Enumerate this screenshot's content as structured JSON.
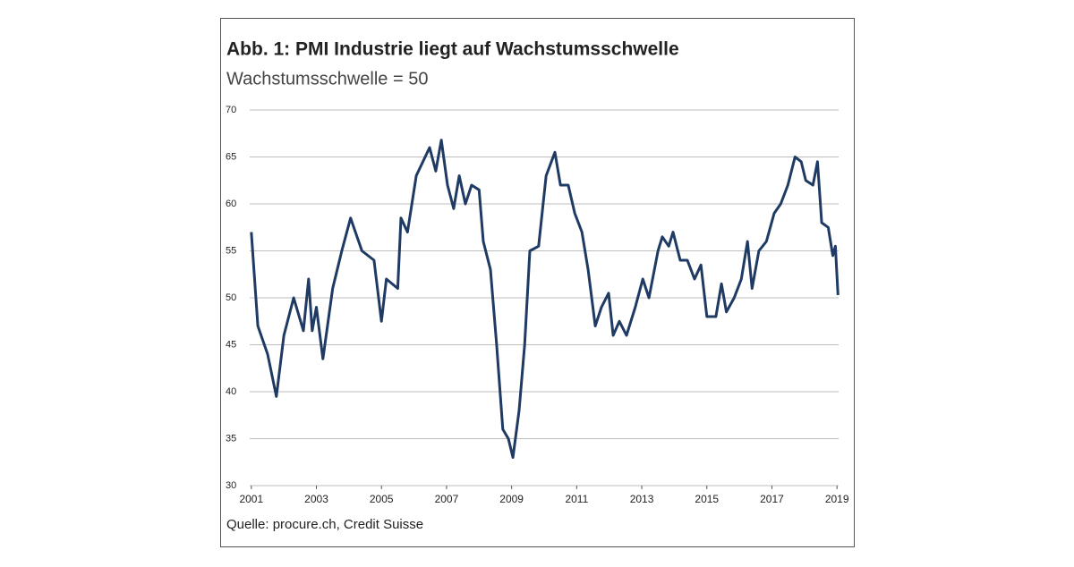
{
  "chart_data": {
    "type": "line",
    "title": "Abb. 1: PMI Industrie liegt auf Wachstumsschwelle",
    "subtitle": "Wachstumsschwelle = 50",
    "source": "Quelle: procure.ch, Credit Suisse",
    "x": [
      2001.0,
      2001.2,
      2001.5,
      2001.77,
      2002.0,
      2002.3,
      2002.6,
      2002.76,
      2002.87,
      2003.0,
      2003.2,
      2003.5,
      2003.78,
      2004.05,
      2004.4,
      2004.77,
      2005.0,
      2005.15,
      2005.5,
      2005.6,
      2005.8,
      2006.07,
      2006.48,
      2006.67,
      2006.84,
      2007.03,
      2007.22,
      2007.39,
      2007.58,
      2007.77,
      2008.0,
      2008.13,
      2008.35,
      2008.54,
      2008.73,
      2008.9,
      2009.04,
      2009.23,
      2009.4,
      2009.56,
      2009.83,
      2010.06,
      2010.33,
      2010.5,
      2010.74,
      2010.94,
      2011.16,
      2011.35,
      2011.57,
      2011.76,
      2011.98,
      2012.12,
      2012.31,
      2012.53,
      2012.8,
      2013.03,
      2013.22,
      2013.5,
      2013.63,
      2013.83,
      2013.96,
      2014.18,
      2014.4,
      2014.62,
      2014.82,
      2015.0,
      2015.28,
      2015.45,
      2015.6,
      2015.84,
      2016.06,
      2016.25,
      2016.39,
      2016.6,
      2016.83,
      2017.07,
      2017.27,
      2017.49,
      2017.71,
      2017.9,
      2018.04,
      2018.26,
      2018.4,
      2018.53,
      2018.73,
      2018.87,
      2018.95,
      2019.03
    ],
    "series": [
      {
        "name": "PMI Industrie",
        "color": "#1f3b64",
        "values": [
          57,
          47,
          44,
          39.5,
          46,
          50,
          46.5,
          52,
          46.5,
          49,
          43.5,
          51,
          55,
          58.5,
          55,
          54,
          47.5,
          52,
          51,
          58.5,
          57,
          63,
          66,
          63.5,
          66.8,
          62,
          59.5,
          63,
          60,
          62,
          61.5,
          56,
          53,
          45,
          36,
          35,
          33,
          38,
          45,
          55,
          55.5,
          63,
          65.5,
          62,
          62,
          59,
          57,
          53,
          47,
          49,
          50.5,
          46,
          47.5,
          46,
          49,
          52,
          50,
          55,
          56.5,
          55.5,
          57,
          54,
          54,
          52,
          53.5,
          48,
          48,
          51.5,
          48.5,
          50,
          52,
          56,
          51,
          55,
          56,
          59,
          60,
          62,
          65,
          64.5,
          62.5,
          62,
          64.5,
          58,
          57.5,
          54.5,
          55.5,
          50.3
        ]
      }
    ],
    "xlim": [
      2000.95,
      2019.05
    ],
    "xticks": [
      2001,
      2003,
      2005,
      2007,
      2009,
      2011,
      2013,
      2015,
      2017,
      2019
    ],
    "ylim": [
      30,
      70
    ],
    "yticks": [
      30,
      35,
      40,
      45,
      50,
      55,
      60,
      65,
      70
    ],
    "grid": true
  }
}
